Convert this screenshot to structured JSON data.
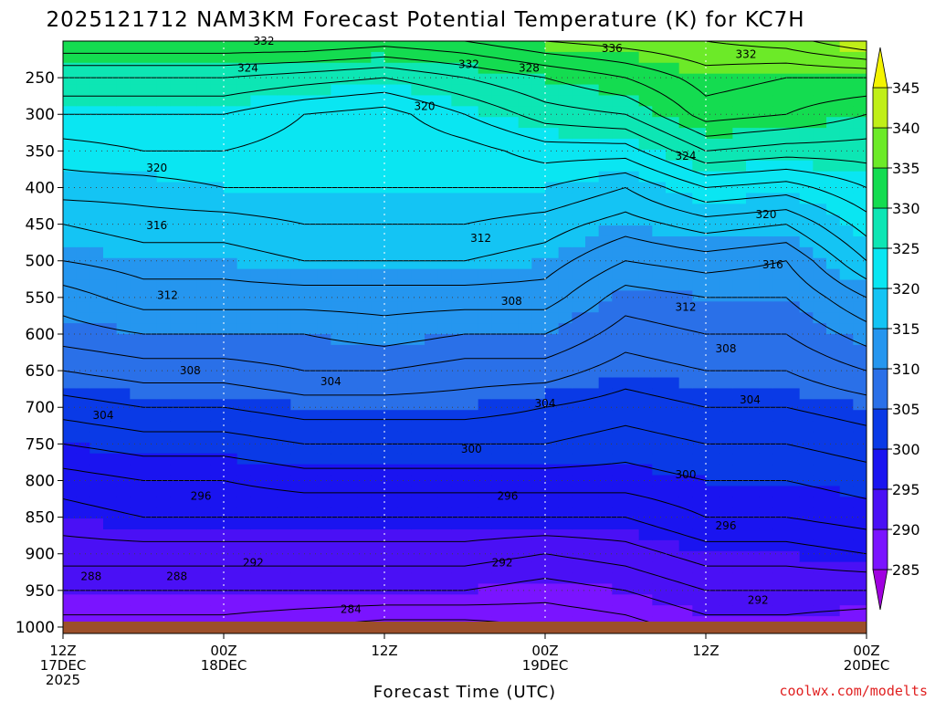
{
  "colors": {
    "ground": "#9c4f2a",
    "credit": "#e02020",
    "grid": "#444444"
  },
  "chart_data": {
    "type": "heatmap",
    "title": "2025121712 NAM3KM Forecast Potential Temperature (K) for KC7H",
    "xlabel": "Forecast Time (UTC)",
    "ylabel": "",
    "credit": "coolwx.com/modelts",
    "x_range_hours": [
      0,
      60
    ],
    "y_range_hpa": [
      200,
      1010
    ],
    "y_scale": "linear-pressure-inverted",
    "grid": true,
    "x_ticks": [
      {
        "hour": 0,
        "lines": [
          "12Z",
          "17DEC",
          "2025"
        ]
      },
      {
        "hour": 12,
        "lines": [
          "00Z",
          "18DEC"
        ]
      },
      {
        "hour": 24,
        "lines": [
          "12Z"
        ]
      },
      {
        "hour": 36,
        "lines": [
          "00Z",
          "19DEC"
        ]
      },
      {
        "hour": 48,
        "lines": [
          "12Z"
        ]
      },
      {
        "hour": 60,
        "lines": [
          "00Z",
          "20DEC"
        ]
      }
    ],
    "y_ticks": [
      250,
      300,
      350,
      400,
      450,
      500,
      550,
      600,
      650,
      700,
      750,
      800,
      850,
      900,
      950,
      1000
    ],
    "colorbar": {
      "ticks": [
        285,
        290,
        295,
        300,
        305,
        310,
        315,
        320,
        325,
        330,
        335,
        340,
        345
      ],
      "bins": [
        {
          "lo": 280,
          "hi": 285,
          "color": "#a000e0"
        },
        {
          "lo": 285,
          "hi": 290,
          "color": "#7a14ff"
        },
        {
          "lo": 290,
          "hi": 295,
          "color": "#4a10f5"
        },
        {
          "lo": 295,
          "hi": 300,
          "color": "#1a14f0"
        },
        {
          "lo": 300,
          "hi": 305,
          "color": "#0a3ae6"
        },
        {
          "lo": 305,
          "hi": 310,
          "color": "#2a70e8"
        },
        {
          "lo": 310,
          "hi": 315,
          "color": "#2596ef"
        },
        {
          "lo": 315,
          "hi": 320,
          "color": "#14c4f4"
        },
        {
          "lo": 320,
          "hi": 325,
          "color": "#0ae6f2"
        },
        {
          "lo": 325,
          "hi": 330,
          "color": "#0de6b4"
        },
        {
          "lo": 330,
          "hi": 335,
          "color": "#14dc50"
        },
        {
          "lo": 335,
          "hi": 340,
          "color": "#6cea28"
        },
        {
          "lo": 340,
          "hi": 345,
          "color": "#c0ef18"
        },
        {
          "lo": 345,
          "hi": 350,
          "color": "#f4f400"
        }
      ]
    },
    "contour_interval": 2,
    "profile_hours": [
      0,
      6,
      12,
      18,
      24,
      30,
      36,
      42,
      48,
      54,
      60
    ],
    "profile_levels_hpa": [
      1000,
      950,
      900,
      850,
      800,
      750,
      700,
      650,
      600,
      550,
      500,
      450,
      400,
      350,
      300,
      250,
      200
    ],
    "profiles_theta_K": [
      [
        287,
        290,
        293,
        295,
        297,
        300,
        303,
        306,
        309,
        311,
        314,
        316,
        319,
        321,
        324,
        328,
        334
      ],
      [
        287,
        290,
        293,
        296,
        298,
        301,
        304,
        307,
        310,
        313,
        315,
        317,
        319,
        322,
        324,
        328,
        334
      ],
      [
        287,
        290,
        293,
        296,
        298,
        301,
        304,
        307,
        310,
        313,
        315,
        317,
        320,
        322,
        324,
        328,
        334
      ],
      [
        286,
        290,
        293,
        296,
        299,
        302,
        305,
        308,
        310,
        313,
        316,
        318,
        320,
        321,
        322,
        327,
        334
      ],
      [
        285,
        290,
        293,
        296,
        299,
        302,
        305,
        308,
        311,
        313,
        316,
        318,
        320,
        320,
        321,
        326,
        333
      ],
      [
        285,
        290,
        293,
        296,
        299,
        302,
        305,
        307,
        310,
        313,
        316,
        318,
        320,
        321,
        324,
        328,
        334
      ],
      [
        286,
        289,
        292,
        296,
        299,
        302,
        304,
        307,
        310,
        313,
        315,
        317,
        320,
        323,
        327,
        330,
        336
      ],
      [
        287,
        290,
        293,
        296,
        299,
        301,
        303,
        305,
        307,
        309,
        312,
        315,
        318,
        323,
        328,
        332,
        337
      ],
      [
        289,
        292,
        295,
        298,
        300,
        302,
        304,
        306,
        308,
        310,
        313,
        317,
        322,
        328,
        333,
        335,
        338
      ],
      [
        289,
        292,
        295,
        298,
        300,
        302,
        304,
        306,
        308,
        310,
        312,
        316,
        321,
        327,
        332,
        334,
        339
      ],
      [
        288,
        292,
        296,
        299,
        301,
        303,
        305,
        308,
        311,
        314,
        318,
        321,
        324,
        327,
        330,
        334,
        342
      ]
    ],
    "contour_labels": [
      {
        "hour": 21.5,
        "hpa": 976,
        "text": "284"
      },
      {
        "hour": 2.1,
        "hpa": 931,
        "text": "288"
      },
      {
        "hour": 8.5,
        "hpa": 931,
        "text": "288"
      },
      {
        "hour": 14.2,
        "hpa": 912,
        "text": "292"
      },
      {
        "hour": 32.8,
        "hpa": 912,
        "text": "292"
      },
      {
        "hour": 51.9,
        "hpa": 963,
        "text": "292"
      },
      {
        "hour": 10.3,
        "hpa": 821,
        "text": "296"
      },
      {
        "hour": 33.2,
        "hpa": 821,
        "text": "296"
      },
      {
        "hour": 49.5,
        "hpa": 862,
        "text": "296"
      },
      {
        "hour": 30.5,
        "hpa": 757,
        "text": "300"
      },
      {
        "hour": 46.5,
        "hpa": 792,
        "text": "300"
      },
      {
        "hour": 3.0,
        "hpa": 711,
        "text": "304"
      },
      {
        "hour": 20.0,
        "hpa": 665,
        "text": "304"
      },
      {
        "hour": 36.0,
        "hpa": 695,
        "text": "304"
      },
      {
        "hour": 51.3,
        "hpa": 690,
        "text": "304"
      },
      {
        "hour": 9.5,
        "hpa": 650,
        "text": "308"
      },
      {
        "hour": 33.5,
        "hpa": 555,
        "text": "308"
      },
      {
        "hour": 49.5,
        "hpa": 620,
        "text": "308"
      },
      {
        "hour": 7.8,
        "hpa": 547,
        "text": "312"
      },
      {
        "hour": 31.2,
        "hpa": 469,
        "text": "312"
      },
      {
        "hour": 46.5,
        "hpa": 563,
        "text": "312"
      },
      {
        "hour": 7.0,
        "hpa": 452,
        "text": "316"
      },
      {
        "hour": 53.0,
        "hpa": 505,
        "text": "316"
      },
      {
        "hour": 7.0,
        "hpa": 373,
        "text": "320"
      },
      {
        "hour": 27.0,
        "hpa": 289,
        "text": "320"
      },
      {
        "hour": 52.5,
        "hpa": 437,
        "text": "320"
      },
      {
        "hour": 13.8,
        "hpa": 237,
        "text": "324"
      },
      {
        "hour": 46.5,
        "hpa": 357,
        "text": "324"
      },
      {
        "hour": 34.8,
        "hpa": 237,
        "text": "328"
      },
      {
        "hour": 15.0,
        "hpa": 200,
        "text": "332"
      },
      {
        "hour": 30.3,
        "hpa": 232,
        "text": "332"
      },
      {
        "hour": 51.0,
        "hpa": 218,
        "text": "332"
      },
      {
        "hour": 41.0,
        "hpa": 210,
        "text": "336"
      }
    ]
  }
}
